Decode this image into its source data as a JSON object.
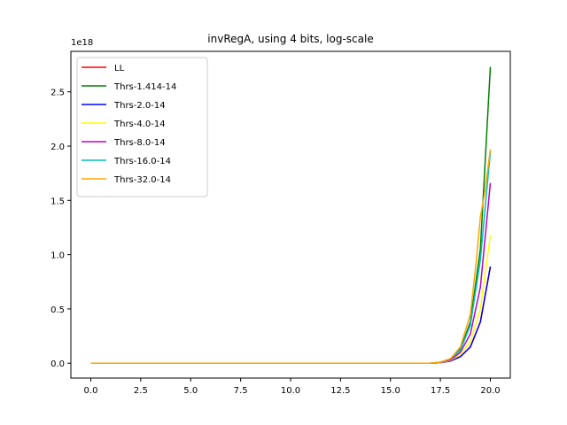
{
  "chart_data": {
    "type": "line",
    "title": "invRegA, using 4 bits, log-scale",
    "xlabel": "",
    "ylabel": "",
    "y_multiplier_label": "1e18",
    "xlim": [
      -0.998,
      20.998
    ],
    "ylim": [
      -0.137,
      2.873
    ],
    "y_unit_scale": 1e+18,
    "xticks": [
      0.0,
      2.5,
      5.0,
      7.5,
      10.0,
      12.5,
      15.0,
      17.5,
      20.0
    ],
    "xtick_labels": [
      "0.0",
      "2.5",
      "5.0",
      "7.5",
      "10.0",
      "12.5",
      "15.0",
      "17.5",
      "20.0"
    ],
    "yticks": [
      0.0,
      0.5,
      1.0,
      1.5,
      2.0,
      2.5
    ],
    "ytick_labels": [
      "0.0",
      "0.5",
      "1.0",
      "1.5",
      "2.0",
      "2.5"
    ],
    "grid": false,
    "legend_position": "upper-left",
    "series": [
      {
        "name": "LL",
        "color": "#ff0000",
        "x": [
          0,
          17.0,
          17.5,
          18.0,
          18.5,
          19.0,
          19.5,
          20.0
        ],
        "y": [
          0,
          0.0,
          0.005,
          0.02,
          0.06,
          0.15,
          0.38,
          0.89
        ]
      },
      {
        "name": "Thrs-1.414-14",
        "color": "#008000",
        "x": [
          0,
          17.0,
          17.5,
          18.0,
          18.5,
          19.0,
          19.5,
          20.0
        ],
        "y": [
          0,
          0.0,
          0.01,
          0.04,
          0.13,
          0.38,
          1.05,
          2.73
        ]
      },
      {
        "name": "Thrs-2.0-14",
        "color": "#0000ff",
        "x": [
          0,
          17.0,
          17.5,
          18.0,
          18.5,
          19.0,
          19.5,
          20.0
        ],
        "y": [
          0,
          0.0,
          0.005,
          0.02,
          0.06,
          0.15,
          0.38,
          0.89
        ]
      },
      {
        "name": "Thrs-4.0-14",
        "color": "#ffff00",
        "x": [
          0,
          17.0,
          17.5,
          18.0,
          18.5,
          19.0,
          19.5,
          20.0
        ],
        "y": [
          0,
          0.0,
          0.006,
          0.025,
          0.08,
          0.2,
          0.5,
          1.18
        ]
      },
      {
        "name": "Thrs-8.0-14",
        "color": "#bf00bf",
        "x": [
          0,
          17.0,
          17.5,
          18.0,
          18.5,
          19.0,
          19.5,
          20.0
        ],
        "y": [
          0,
          0.0,
          0.008,
          0.03,
          0.1,
          0.27,
          0.7,
          1.66
        ]
      },
      {
        "name": "Thrs-16.0-14",
        "color": "#00bfbf",
        "x": [
          0,
          17.0,
          17.5,
          18.0,
          18.5,
          19.0,
          19.5,
          20.0
        ],
        "y": [
          0,
          0.0,
          0.01,
          0.04,
          0.12,
          0.35,
          0.95,
          1.95
        ]
      },
      {
        "name": "Thrs-32.0-14",
        "color": "#ffa500",
        "x": [
          0,
          17.0,
          17.5,
          18.0,
          18.5,
          19.0,
          19.3,
          19.5,
          19.7,
          20.0
        ],
        "y": [
          0,
          0.0,
          0.01,
          0.04,
          0.15,
          0.45,
          0.95,
          1.35,
          1.55,
          1.97
        ]
      }
    ]
  }
}
